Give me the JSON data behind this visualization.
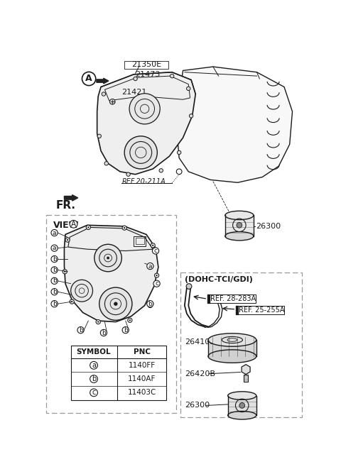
{
  "bg_color": "#ffffff",
  "lc": "#1a1a1a",
  "gray": "#aaaaaa",
  "light_gray": "#f2f2f2",
  "parts": {
    "label_21350E": "21350E",
    "label_21473": "21473",
    "label_21421": "21421",
    "label_26300_top": "26300",
    "label_26410B": "26410B",
    "label_26420B": "26420B",
    "label_26300_dohc": "26300",
    "ref_20_211A": "REF.20-211A",
    "ref_28_283A": "REF. 28-283A",
    "ref_25_255A": "REF. 25-255A",
    "dohc_label": "(DOHC-TCI/GDI)",
    "fr_label": "FR.",
    "view_label": "VIEW",
    "A_label": "A"
  },
  "symbol_table": {
    "symbols": [
      "a",
      "b",
      "c"
    ],
    "pncs": [
      "1140FF",
      "1140AF",
      "11403C"
    ]
  }
}
